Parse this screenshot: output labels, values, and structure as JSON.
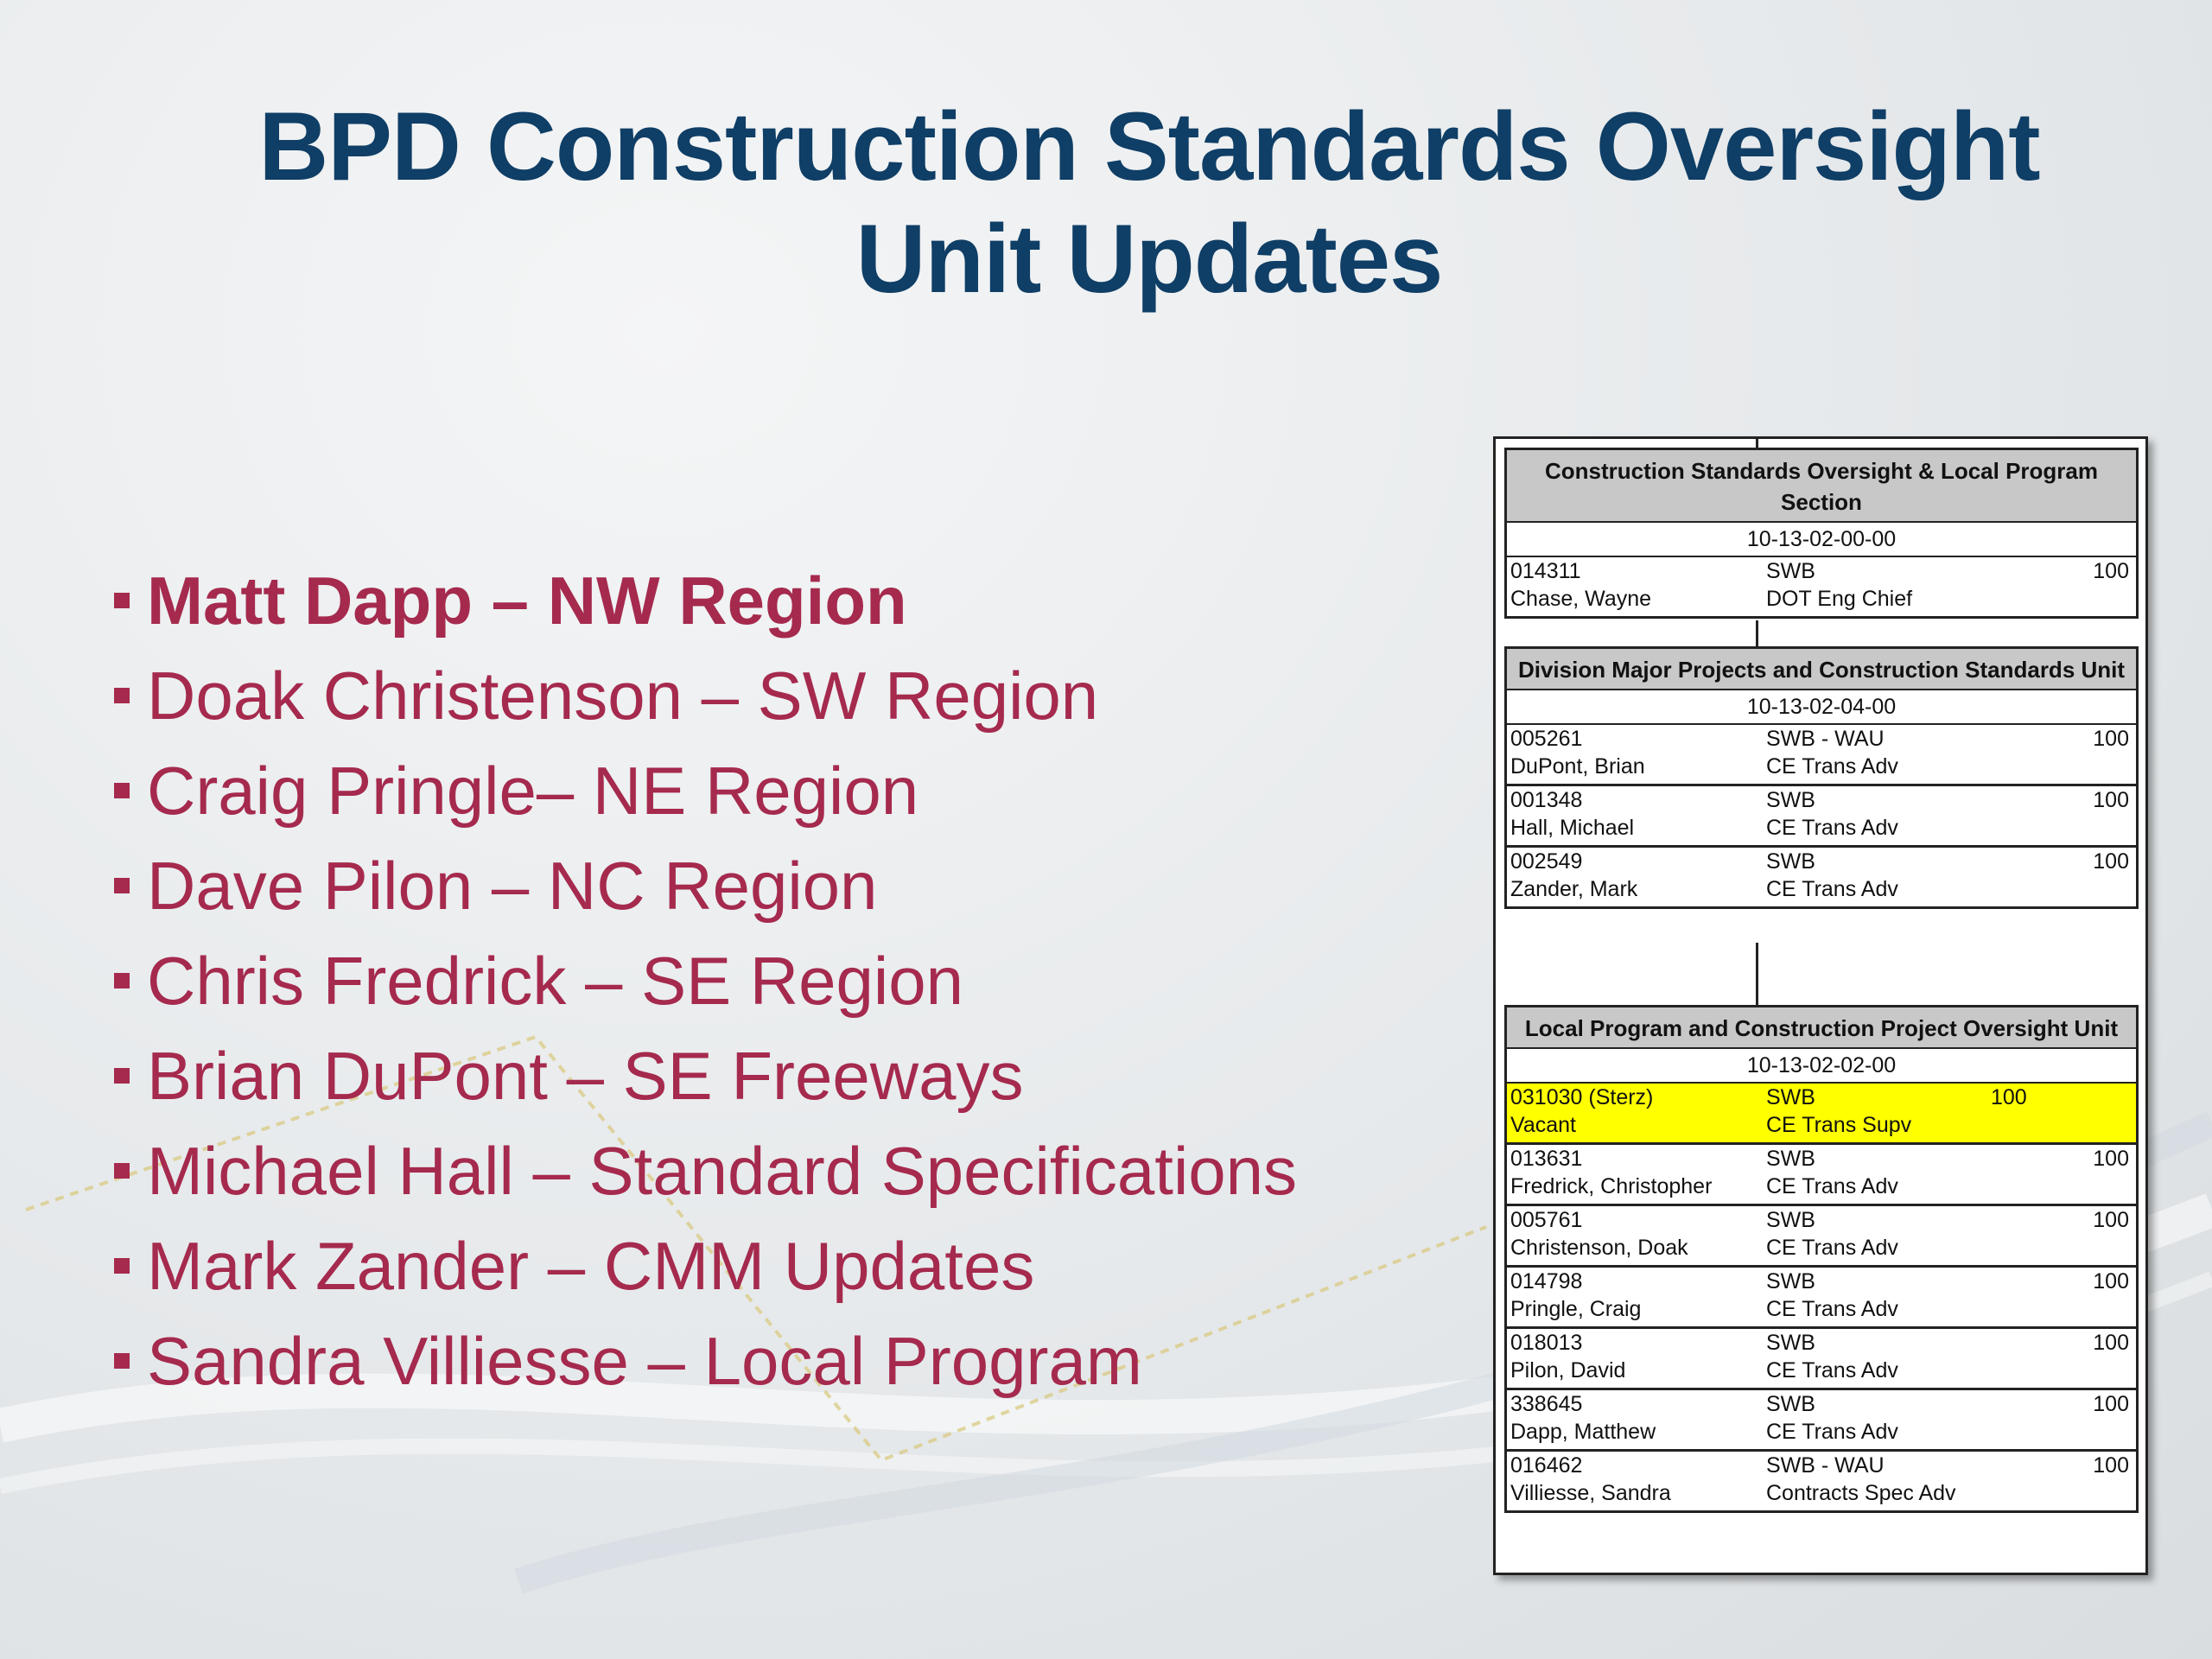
{
  "title": {
    "line1": "BPD Construction Standards Oversight",
    "line2": "Unit Updates"
  },
  "bullets": [
    "Matt Dapp – NW Region",
    "Doak Christenson – SW Region",
    "Craig Pringle– NE Region",
    "Dave Pilon – NC Region",
    "Chris Fredrick – SE Region",
    "Brian DuPont – SE Freeways",
    "Michael Hall – Standard Specifications",
    "Mark Zander – CMM Updates",
    "Sandra Villiesse – Local Program"
  ],
  "colors": {
    "title": "#0f3e66",
    "bullet_text": "#a52a4e",
    "vacant_highlight": "#ffff00",
    "header_fill": "#c8c8c8"
  },
  "org_chart": {
    "section": {
      "header": "Construction Standards Oversight & Local Program Section",
      "code": "10-13-02-00-00",
      "rows": [
        {
          "id": "014311",
          "name": "Chase, Wayne",
          "class": "SWB",
          "title": "DOT Eng Chief",
          "pct": "100"
        }
      ]
    },
    "division_unit": {
      "header": "Division Major Projects and Construction Standards Unit",
      "code": "10-13-02-04-00",
      "rows": [
        {
          "id": "005261",
          "name": "DuPont, Brian",
          "class": "SWB - WAU",
          "title": "CE Trans Adv",
          "pct": "100"
        },
        {
          "id": "001348",
          "name": "Hall, Michael",
          "class": "SWB",
          "title": "CE Trans Adv",
          "pct": "100"
        },
        {
          "id": "002549",
          "name": "Zander, Mark",
          "class": "SWB",
          "title": "CE Trans Adv",
          "pct": "100"
        }
      ]
    },
    "local_unit": {
      "header": "Local Program and Construction Project Oversight Unit",
      "code": "10-13-02-02-00",
      "rows": [
        {
          "id": "031030 (Sterz)",
          "name": "Vacant",
          "class": "SWB",
          "title": "CE Trans Supv",
          "pct": "100"
        },
        {
          "id": "013631",
          "name": "Fredrick, Christopher",
          "class": "SWB",
          "title": "CE Trans Adv",
          "pct": "100"
        },
        {
          "id": "005761",
          "name": "Christenson, Doak",
          "class": "SWB",
          "title": "CE Trans Adv",
          "pct": "100"
        },
        {
          "id": "014798",
          "name": "Pringle, Craig",
          "class": "SWB",
          "title": "CE Trans Adv",
          "pct": "100"
        },
        {
          "id": "018013",
          "name": "Pilon, David",
          "class": "SWB",
          "title": "CE Trans Adv",
          "pct": "100"
        },
        {
          "id": "338645",
          "name": "Dapp, Matthew",
          "class": "SWB",
          "title": "CE Trans Adv",
          "pct": "100"
        },
        {
          "id": "016462",
          "name": "Villiesse, Sandra",
          "class": "SWB - WAU",
          "title": "Contracts Spec Adv",
          "pct": "100"
        }
      ]
    }
  }
}
